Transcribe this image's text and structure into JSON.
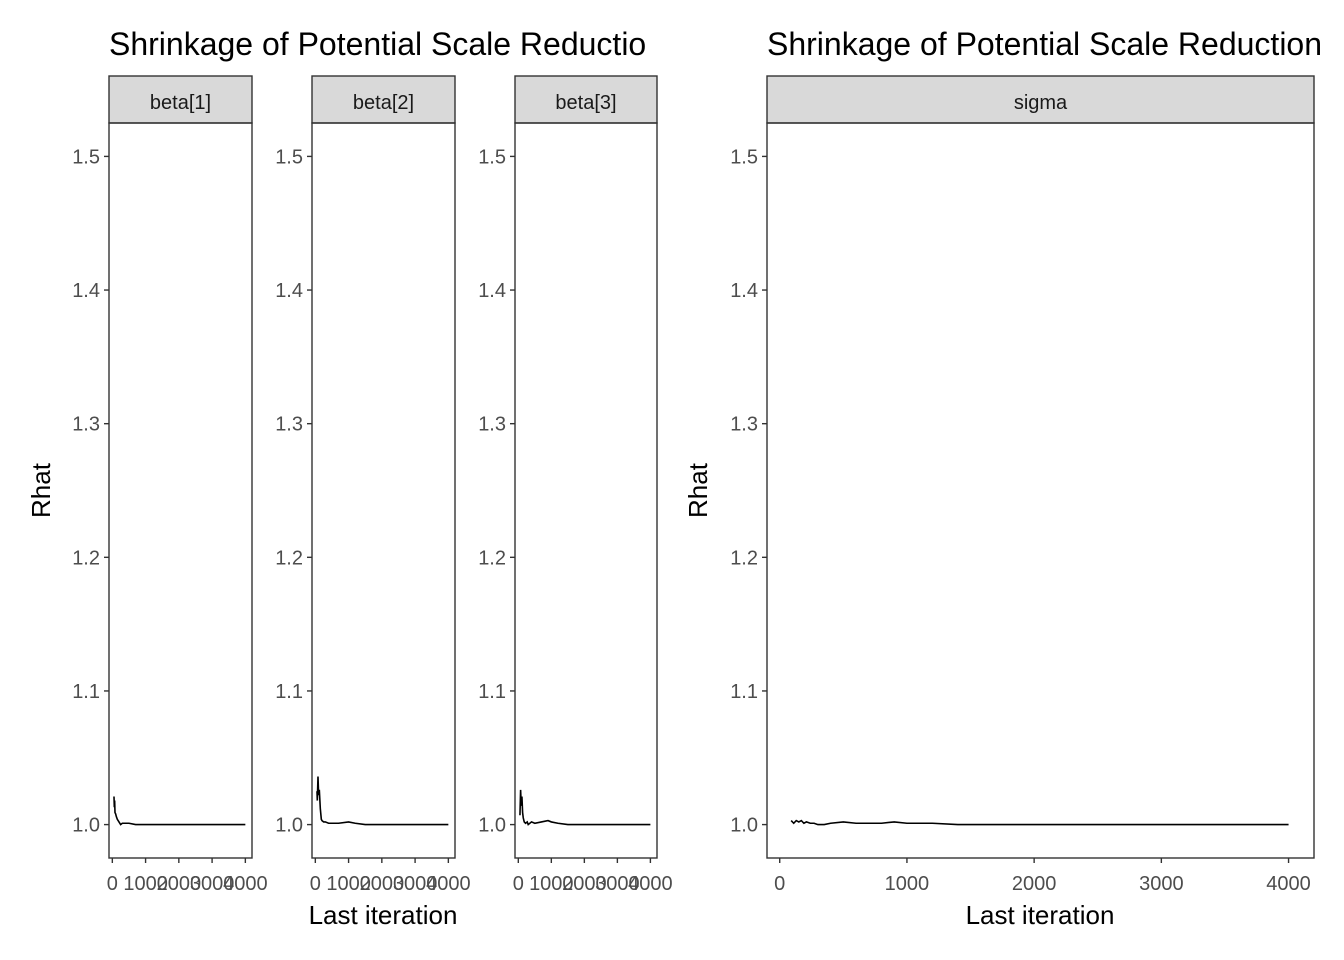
{
  "chart_data": [
    {
      "type": "line",
      "title": "Shrinkage of Potential Scale Reductio",
      "xlabel": "Last iteration",
      "ylabel": "Rhat",
      "ylim": [
        0.975,
        1.525
      ],
      "yticks": [
        "1.0",
        "1.1",
        "1.2",
        "1.3",
        "1.4",
        "1.5"
      ],
      "xticks": [
        "0",
        "1000",
        "2000",
        "3000",
        "4000"
      ],
      "xlim": [
        -100,
        4200
      ],
      "grid": false,
      "panels": [
        {
          "name": "beta[1]",
          "x": [
            50,
            60,
            70,
            80,
            100,
            120,
            150,
            200,
            250,
            300,
            400,
            500,
            700,
            1000,
            1500,
            2000,
            3000,
            4000
          ],
          "y": [
            1.021,
            1.013,
            1.018,
            1.009,
            1.008,
            1.006,
            1.004,
            1.002,
            1.0,
            1.001,
            1.001,
            1.001,
            1.0,
            1.0,
            1.0,
            1.0,
            1.0,
            1.0
          ]
        },
        {
          "name": "beta[2]",
          "x": [
            50,
            60,
            80,
            100,
            120,
            150,
            180,
            200,
            250,
            300,
            400,
            500,
            700,
            1000,
            1200,
            1500,
            2000,
            3000,
            4000
          ],
          "y": [
            1.025,
            1.018,
            1.036,
            1.022,
            1.026,
            1.012,
            1.004,
            1.003,
            1.002,
            1.002,
            1.001,
            1.001,
            1.001,
            1.002,
            1.001,
            1.0,
            1.0,
            1.0,
            1.0
          ]
        },
        {
          "name": "beta[3]",
          "x": [
            50,
            70,
            90,
            110,
            130,
            150,
            180,
            220,
            270,
            300,
            400,
            500,
            700,
            900,
            1000,
            1200,
            1500,
            2000,
            3000,
            4000
          ],
          "y": [
            1.007,
            1.026,
            1.014,
            1.021,
            1.009,
            1.005,
            1.002,
            1.001,
            1.002,
            1.0,
            1.002,
            1.001,
            1.002,
            1.003,
            1.002,
            1.001,
            1.0,
            1.0,
            1.0,
            1.0
          ]
        }
      ]
    },
    {
      "type": "line",
      "title": "Shrinkage of Potential Scale Reduction",
      "xlabel": "Last iteration",
      "ylabel": "Rhat",
      "ylim": [
        0.975,
        1.525
      ],
      "yticks": [
        "1.0",
        "1.1",
        "1.2",
        "1.3",
        "1.4",
        "1.5"
      ],
      "xticks": [
        "0",
        "1000",
        "2000",
        "3000",
        "4000"
      ],
      "xlim": [
        -100,
        4200
      ],
      "grid": false,
      "panels": [
        {
          "name": "sigma",
          "x": [
            90,
            110,
            130,
            150,
            170,
            190,
            210,
            240,
            270,
            300,
            350,
            400,
            500,
            600,
            700,
            800,
            900,
            1000,
            1200,
            1400,
            1700,
            2000,
            3000,
            4000
          ],
          "y": [
            1.003,
            1.001,
            1.003,
            1.002,
            1.003,
            1.001,
            1.002,
            1.001,
            1.001,
            1.0,
            1.0,
            1.001,
            1.002,
            1.001,
            1.001,
            1.001,
            1.002,
            1.001,
            1.001,
            1.0,
            1.0,
            1.0,
            1.0,
            1.0
          ]
        }
      ]
    }
  ]
}
